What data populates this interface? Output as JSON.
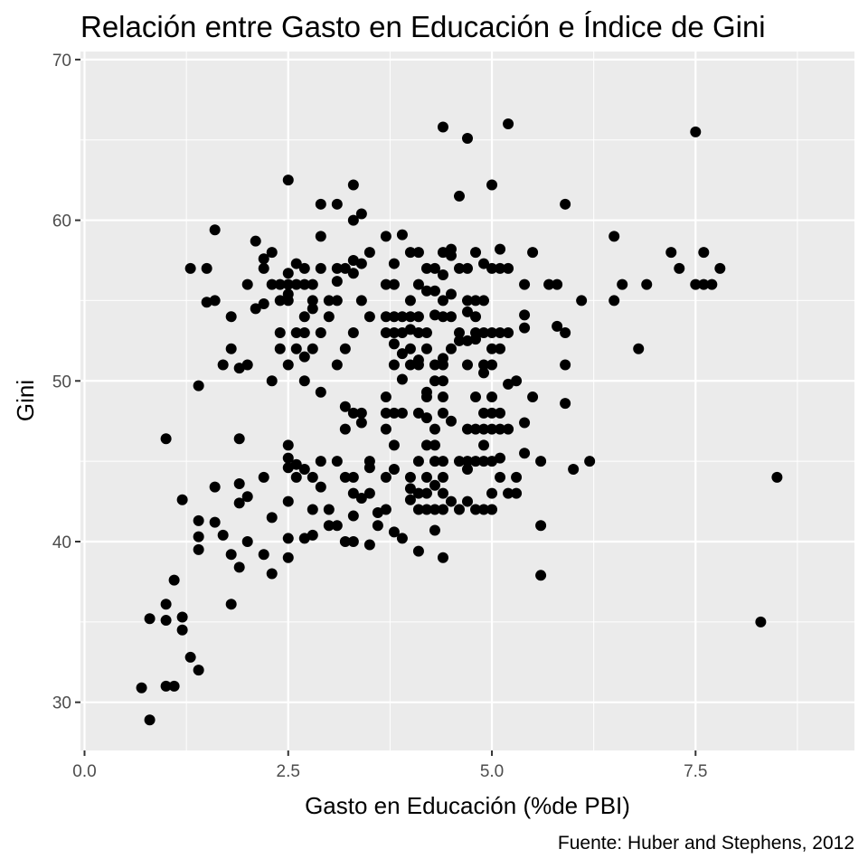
{
  "chart_data": {
    "type": "scatter",
    "title": "Relación entre Gasto en Educación e Índice de Gini",
    "xlabel": "Gasto en Educación (%de PBI)",
    "ylabel": "Gini",
    "caption": "Fuente: Huber and Stephens, 2012",
    "xlim": [
      -0.05,
      9.45
    ],
    "ylim": [
      27,
      70.5
    ],
    "x_ticks": [
      0,
      2.5,
      5,
      7.5
    ],
    "x_tick_labels": [
      "0.0",
      "2.5",
      "5.0",
      "7.5"
    ],
    "y_ticks": [
      30,
      40,
      50,
      60,
      70
    ],
    "y_tick_labels": [
      "30",
      "40",
      "50",
      "60",
      "70"
    ],
    "grid": true,
    "colors": {
      "panel": "#ebebeb",
      "grid": "#ffffff",
      "point": "#000000"
    },
    "points": [
      [
        0.7,
        30.9
      ],
      [
        0.8,
        28.9
      ],
      [
        0.8,
        35.2
      ],
      [
        1.0,
        46.4
      ],
      [
        1.0,
        36.1
      ],
      [
        1.0,
        35.1
      ],
      [
        1.0,
        31.0
      ],
      [
        1.1,
        31.0
      ],
      [
        1.1,
        37.6
      ],
      [
        1.2,
        42.6
      ],
      [
        1.2,
        35.3
      ],
      [
        1.2,
        34.5
      ],
      [
        1.3,
        57.0
      ],
      [
        1.3,
        32.8
      ],
      [
        1.4,
        49.7
      ],
      [
        1.4,
        41.3
      ],
      [
        1.4,
        40.3
      ],
      [
        1.4,
        39.5
      ],
      [
        1.4,
        32.0
      ],
      [
        1.5,
        57.0
      ],
      [
        1.5,
        54.9
      ],
      [
        1.6,
        59.4
      ],
      [
        1.6,
        55.0
      ],
      [
        1.6,
        43.4
      ],
      [
        1.6,
        41.2
      ],
      [
        1.7,
        51.0
      ],
      [
        1.7,
        40.4
      ],
      [
        1.8,
        54.0
      ],
      [
        1.8,
        52.0
      ],
      [
        1.8,
        39.2
      ],
      [
        1.8,
        36.1
      ],
      [
        1.9,
        50.8
      ],
      [
        1.9,
        46.4
      ],
      [
        1.9,
        43.6
      ],
      [
        1.9,
        42.4
      ],
      [
        1.9,
        38.4
      ],
      [
        2.0,
        56.0
      ],
      [
        2.0,
        51.0
      ],
      [
        2.0,
        42.8
      ],
      [
        2.0,
        40.0
      ],
      [
        2.1,
        58.7
      ],
      [
        2.1,
        54.5
      ],
      [
        2.2,
        57.6
      ],
      [
        2.2,
        57.0
      ],
      [
        2.2,
        54.8
      ],
      [
        2.2,
        44.0
      ],
      [
        2.2,
        39.2
      ],
      [
        2.3,
        58.0
      ],
      [
        2.3,
        56.0
      ],
      [
        2.3,
        50.0
      ],
      [
        2.3,
        41.5
      ],
      [
        2.3,
        38.0
      ],
      [
        2.4,
        56.0
      ],
      [
        2.4,
        55.0
      ],
      [
        2.4,
        53.0
      ],
      [
        2.4,
        52.0
      ],
      [
        2.5,
        62.5
      ],
      [
        2.5,
        56.7
      ],
      [
        2.5,
        56.0
      ],
      [
        2.5,
        55.4
      ],
      [
        2.5,
        55.0
      ],
      [
        2.5,
        51.0
      ],
      [
        2.5,
        46.0
      ],
      [
        2.5,
        45.2
      ],
      [
        2.5,
        44.6
      ],
      [
        2.5,
        42.5
      ],
      [
        2.5,
        40.2
      ],
      [
        2.5,
        39.0
      ],
      [
        2.6,
        57.3
      ],
      [
        2.6,
        56.0
      ],
      [
        2.6,
        53.0
      ],
      [
        2.6,
        52.0
      ],
      [
        2.6,
        44.8
      ],
      [
        2.6,
        44.0
      ],
      [
        2.7,
        57.0
      ],
      [
        2.7,
        56.0
      ],
      [
        2.7,
        54.0
      ],
      [
        2.7,
        53.0
      ],
      [
        2.7,
        51.5
      ],
      [
        2.7,
        50.0
      ],
      [
        2.7,
        44.5
      ],
      [
        2.7,
        40.2
      ],
      [
        2.8,
        56.0
      ],
      [
        2.8,
        55.0
      ],
      [
        2.8,
        54.5
      ],
      [
        2.8,
        52.0
      ],
      [
        2.8,
        44.0
      ],
      [
        2.8,
        42.0
      ],
      [
        2.8,
        40.4
      ],
      [
        2.9,
        61.0
      ],
      [
        2.9,
        59.0
      ],
      [
        2.9,
        57.0
      ],
      [
        2.9,
        53.0
      ],
      [
        2.9,
        49.3
      ],
      [
        2.9,
        45.0
      ],
      [
        2.9,
        43.4
      ],
      [
        3.0,
        55.0
      ],
      [
        3.0,
        54.0
      ],
      [
        3.0,
        42.0
      ],
      [
        3.0,
        41.0
      ],
      [
        3.1,
        61.0
      ],
      [
        3.1,
        57.0
      ],
      [
        3.1,
        56.2
      ],
      [
        3.1,
        55.0
      ],
      [
        3.1,
        51.0
      ],
      [
        3.1,
        45.0
      ],
      [
        3.1,
        41.0
      ],
      [
        3.2,
        57.0
      ],
      [
        3.2,
        52.0
      ],
      [
        3.2,
        48.4
      ],
      [
        3.2,
        47.0
      ],
      [
        3.2,
        44.0
      ],
      [
        3.2,
        40.0
      ],
      [
        3.3,
        62.2
      ],
      [
        3.3,
        60.0
      ],
      [
        3.3,
        57.5
      ],
      [
        3.3,
        56.7
      ],
      [
        3.3,
        53.0
      ],
      [
        3.3,
        48.0
      ],
      [
        3.3,
        44.0
      ],
      [
        3.3,
        43.0
      ],
      [
        3.3,
        41.6
      ],
      [
        3.3,
        40.0
      ],
      [
        3.4,
        60.4
      ],
      [
        3.4,
        57.3
      ],
      [
        3.4,
        55.0
      ],
      [
        3.4,
        48.0
      ],
      [
        3.4,
        47.4
      ],
      [
        3.4,
        42.7
      ],
      [
        3.5,
        58.0
      ],
      [
        3.5,
        54.0
      ],
      [
        3.5,
        45.0
      ],
      [
        3.5,
        44.6
      ],
      [
        3.5,
        43.0
      ],
      [
        3.5,
        39.8
      ],
      [
        3.6,
        41.8
      ],
      [
        3.6,
        41.0
      ],
      [
        3.7,
        59.0
      ],
      [
        3.7,
        56.0
      ],
      [
        3.7,
        54.0
      ],
      [
        3.7,
        53.0
      ],
      [
        3.7,
        49.0
      ],
      [
        3.7,
        48.0
      ],
      [
        3.7,
        47.0
      ],
      [
        3.7,
        44.0
      ],
      [
        3.7,
        42.0
      ],
      [
        3.8,
        57.3
      ],
      [
        3.8,
        56.0
      ],
      [
        3.8,
        54.0
      ],
      [
        3.8,
        53.0
      ],
      [
        3.8,
        52.3
      ],
      [
        3.8,
        51.0
      ],
      [
        3.8,
        48.0
      ],
      [
        3.8,
        46.0
      ],
      [
        3.8,
        44.5
      ],
      [
        3.8,
        40.6
      ],
      [
        3.9,
        59.1
      ],
      [
        3.9,
        54.0
      ],
      [
        3.9,
        53.0
      ],
      [
        3.9,
        51.7
      ],
      [
        3.9,
        50.1
      ],
      [
        3.9,
        48.0
      ],
      [
        3.9,
        40.2
      ],
      [
        4.0,
        58.0
      ],
      [
        4.0,
        55.0
      ],
      [
        4.0,
        54.0
      ],
      [
        4.0,
        53.2
      ],
      [
        4.0,
        52.0
      ],
      [
        4.0,
        51.0
      ],
      [
        4.0,
        44.0
      ],
      [
        4.0,
        43.3
      ],
      [
        4.0,
        42.6
      ],
      [
        4.1,
        58.0
      ],
      [
        4.1,
        56.0
      ],
      [
        4.1,
        54.0
      ],
      [
        4.1,
        53.0
      ],
      [
        4.1,
        51.3
      ],
      [
        4.1,
        51.0
      ],
      [
        4.1,
        48.0
      ],
      [
        4.1,
        45.0
      ],
      [
        4.1,
        43.0
      ],
      [
        4.1,
        42.0
      ],
      [
        4.1,
        39.4
      ],
      [
        4.2,
        57.0
      ],
      [
        4.2,
        55.6
      ],
      [
        4.2,
        53.0
      ],
      [
        4.2,
        52.0
      ],
      [
        4.2,
        49.3
      ],
      [
        4.2,
        49.0
      ],
      [
        4.2,
        47.7
      ],
      [
        4.2,
        46.0
      ],
      [
        4.2,
        44.0
      ],
      [
        4.2,
        43.0
      ],
      [
        4.2,
        42.0
      ],
      [
        4.3,
        57.0
      ],
      [
        4.3,
        55.6
      ],
      [
        4.3,
        54.1
      ],
      [
        4.3,
        51.0
      ],
      [
        4.3,
        50.0
      ],
      [
        4.3,
        47.0
      ],
      [
        4.3,
        46.0
      ],
      [
        4.3,
        45.0
      ],
      [
        4.3,
        43.5
      ],
      [
        4.3,
        42.0
      ],
      [
        4.3,
        40.7
      ],
      [
        4.4,
        65.8
      ],
      [
        4.4,
        58.0
      ],
      [
        4.4,
        56.6
      ],
      [
        4.4,
        55.0
      ],
      [
        4.4,
        54.0
      ],
      [
        4.4,
        51.4
      ],
      [
        4.4,
        51.0
      ],
      [
        4.4,
        50.0
      ],
      [
        4.4,
        49.0
      ],
      [
        4.4,
        48.0
      ],
      [
        4.4,
        45.0
      ],
      [
        4.4,
        44.0
      ],
      [
        4.4,
        43.0
      ],
      [
        4.4,
        42.0
      ],
      [
        4.4,
        39.0
      ],
      [
        4.5,
        58.2
      ],
      [
        4.5,
        57.8
      ],
      [
        4.5,
        55.4
      ],
      [
        4.5,
        54.0
      ],
      [
        4.5,
        52.0
      ],
      [
        4.5,
        47.5
      ],
      [
        4.5,
        42.5
      ],
      [
        4.6,
        61.5
      ],
      [
        4.6,
        57.0
      ],
      [
        4.6,
        53.0
      ],
      [
        4.6,
        52.5
      ],
      [
        4.6,
        45.0
      ],
      [
        4.6,
        42.0
      ],
      [
        4.7,
        65.1
      ],
      [
        4.7,
        57.0
      ],
      [
        4.7,
        55.0
      ],
      [
        4.7,
        54.3
      ],
      [
        4.7,
        52.5
      ],
      [
        4.7,
        51.0
      ],
      [
        4.7,
        47.0
      ],
      [
        4.7,
        45.0
      ],
      [
        4.7,
        44.5
      ],
      [
        4.7,
        42.5
      ],
      [
        4.8,
        58.0
      ],
      [
        4.8,
        55.0
      ],
      [
        4.8,
        54.0
      ],
      [
        4.8,
        53.0
      ],
      [
        4.8,
        52.6
      ],
      [
        4.8,
        49.0
      ],
      [
        4.8,
        47.0
      ],
      [
        4.8,
        45.0
      ],
      [
        4.8,
        42.0
      ],
      [
        4.9,
        57.3
      ],
      [
        4.9,
        55.0
      ],
      [
        4.9,
        53.0
      ],
      [
        4.9,
        51.0
      ],
      [
        4.9,
        50.5
      ],
      [
        4.9,
        48.0
      ],
      [
        4.9,
        47.0
      ],
      [
        4.9,
        46.0
      ],
      [
        4.9,
        45.0
      ],
      [
        4.9,
        42.0
      ],
      [
        5.0,
        62.2
      ],
      [
        5.0,
        57.0
      ],
      [
        5.0,
        53.0
      ],
      [
        5.0,
        52.0
      ],
      [
        5.0,
        51.0
      ],
      [
        5.0,
        49.0
      ],
      [
        5.0,
        48.0
      ],
      [
        5.0,
        47.0
      ],
      [
        5.0,
        45.0
      ],
      [
        5.0,
        43.0
      ],
      [
        5.0,
        42.0
      ],
      [
        5.1,
        58.2
      ],
      [
        5.1,
        57.0
      ],
      [
        5.1,
        53.0
      ],
      [
        5.1,
        52.0
      ],
      [
        5.1,
        48.0
      ],
      [
        5.1,
        47.0
      ],
      [
        5.1,
        45.2
      ],
      [
        5.1,
        44.0
      ],
      [
        5.2,
        66.0
      ],
      [
        5.2,
        57.0
      ],
      [
        5.2,
        53.0
      ],
      [
        5.2,
        49.8
      ],
      [
        5.2,
        47.0
      ],
      [
        5.2,
        43.0
      ],
      [
        5.3,
        50.0
      ],
      [
        5.3,
        44.0
      ],
      [
        5.3,
        43.0
      ],
      [
        5.4,
        56.0
      ],
      [
        5.4,
        54.1
      ],
      [
        5.4,
        53.3
      ],
      [
        5.4,
        47.4
      ],
      [
        5.4,
        45.5
      ],
      [
        5.5,
        58.0
      ],
      [
        5.5,
        49.0
      ],
      [
        5.6,
        45.0
      ],
      [
        5.6,
        41.0
      ],
      [
        5.6,
        37.9
      ],
      [
        5.7,
        56.0
      ],
      [
        5.8,
        56.0
      ],
      [
        5.8,
        53.4
      ],
      [
        5.9,
        61.0
      ],
      [
        5.9,
        53.0
      ],
      [
        5.9,
        51.0
      ],
      [
        5.9,
        48.6
      ],
      [
        6.0,
        44.5
      ],
      [
        6.1,
        55.0
      ],
      [
        6.2,
        45.0
      ],
      [
        6.5,
        59.0
      ],
      [
        6.5,
        55.0
      ],
      [
        6.6,
        56.0
      ],
      [
        6.8,
        52.0
      ],
      [
        6.9,
        56.0
      ],
      [
        7.2,
        58.0
      ],
      [
        7.3,
        57.0
      ],
      [
        7.5,
        65.5
      ],
      [
        7.5,
        56.0
      ],
      [
        7.6,
        58.0
      ],
      [
        7.6,
        56.0
      ],
      [
        7.7,
        56.0
      ],
      [
        7.8,
        57.0
      ],
      [
        8.3,
        35.0
      ],
      [
        8.5,
        44.0
      ]
    ]
  }
}
